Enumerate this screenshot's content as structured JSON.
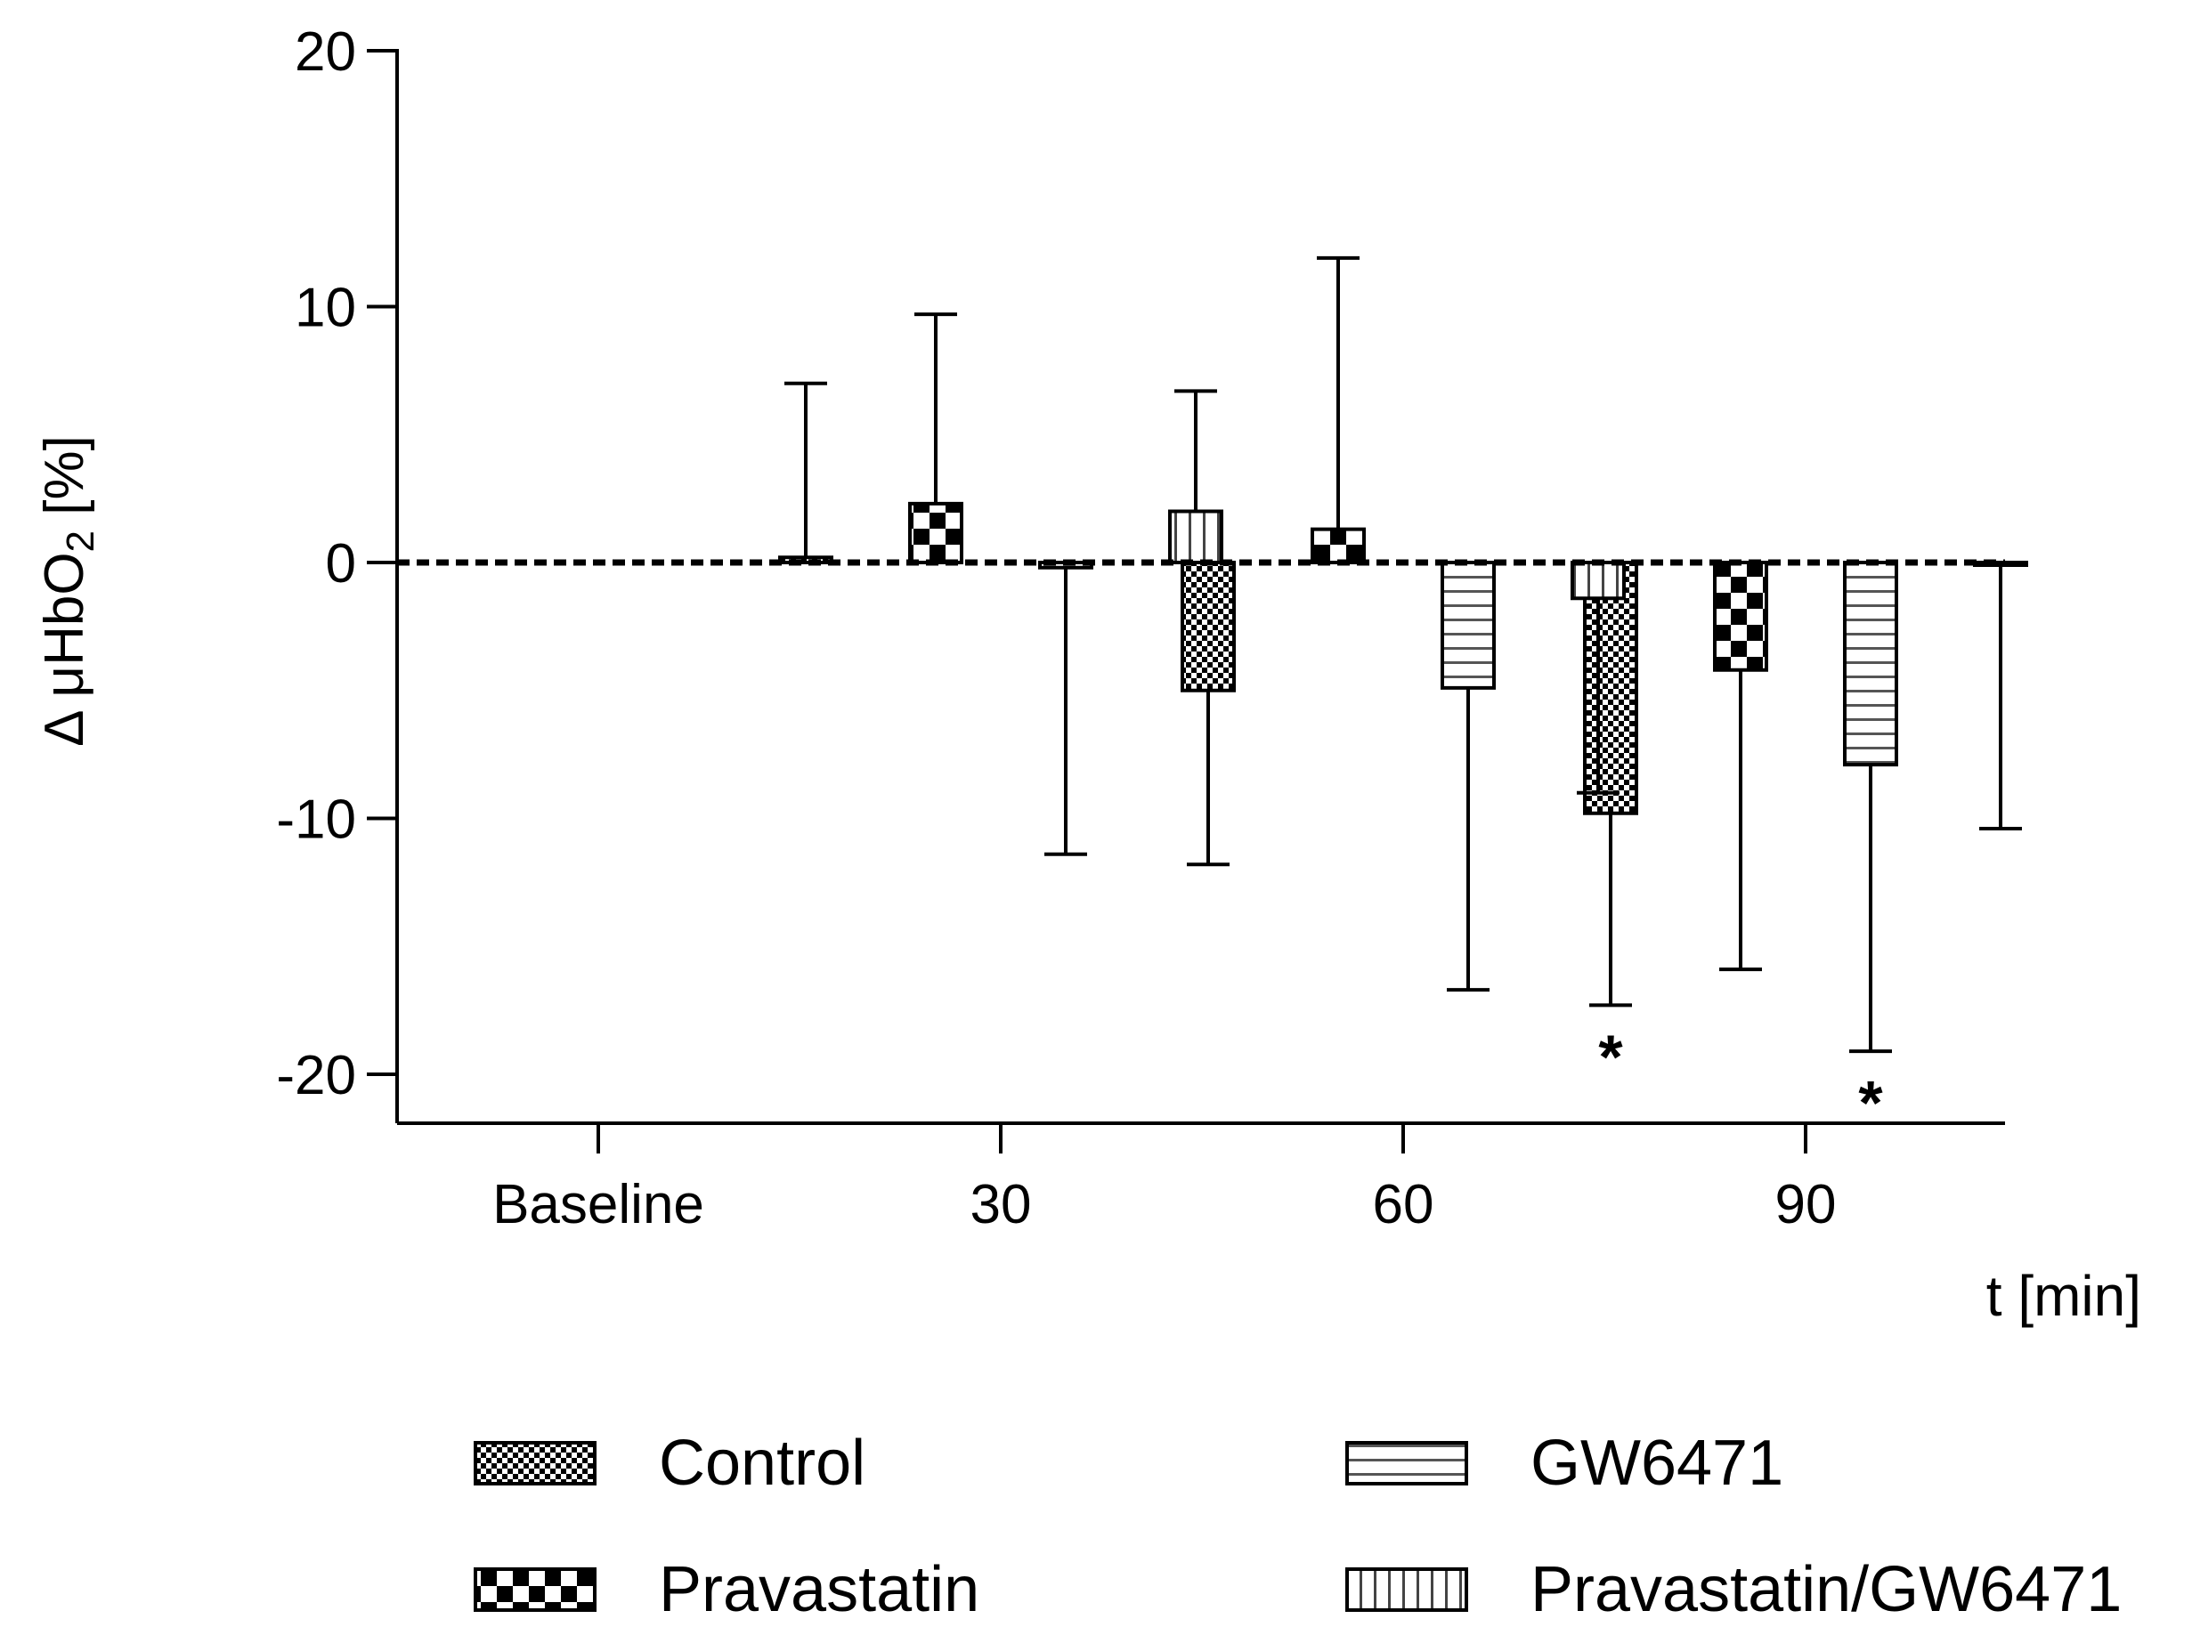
{
  "chart_data": {
    "type": "bar",
    "categories": [
      "Baseline",
      "30",
      "60",
      "90"
    ],
    "ylabel_prefix": "Δ μHbO",
    "ylabel_sub": "2",
    "ylabel_suffix": " [%]",
    "xlabel": "t [min]",
    "ylim": [
      -20,
      20
    ],
    "yticks": [
      20,
      10,
      0,
      -10,
      -20
    ],
    "yticklabels": [
      "20",
      "10",
      "0",
      "-10",
      "-20"
    ],
    "reference_line": 0,
    "legend_placement": "bottom",
    "series": [
      {
        "name": "Control",
        "pattern": "checker-fine",
        "values": [
          0,
          0.2,
          -5.0,
          -9.8
        ],
        "error": [
          0,
          6.8,
          6.8,
          7.5
        ],
        "significant": [
          false,
          false,
          false,
          true
        ]
      },
      {
        "name": "Pravastatin",
        "pattern": "checker-coarse",
        "values": [
          0,
          2.3,
          1.3,
          -4.2
        ],
        "error": [
          0,
          7.4,
          10.6,
          11.7
        ],
        "significant": [
          false,
          false,
          false,
          false
        ]
      },
      {
        "name": "GW6471",
        "pattern": "horizontal-lines",
        "values": [
          0,
          -0.2,
          -4.9,
          -7.9
        ],
        "error": [
          0,
          11.2,
          11.8,
          11.2
        ],
        "significant": [
          false,
          false,
          false,
          true
        ]
      },
      {
        "name": "Pravastatin/GW6471",
        "pattern": "vertical-lines",
        "values": [
          0,
          2.0,
          -1.4,
          -0.1
        ],
        "error": [
          0,
          4.7,
          7.6,
          10.3
        ],
        "significant": [
          false,
          false,
          false,
          false
        ]
      }
    ],
    "significance_marker": "*",
    "colors": {
      "ink": "#000000",
      "hatch": "#555555",
      "background": "#ffffff"
    }
  }
}
